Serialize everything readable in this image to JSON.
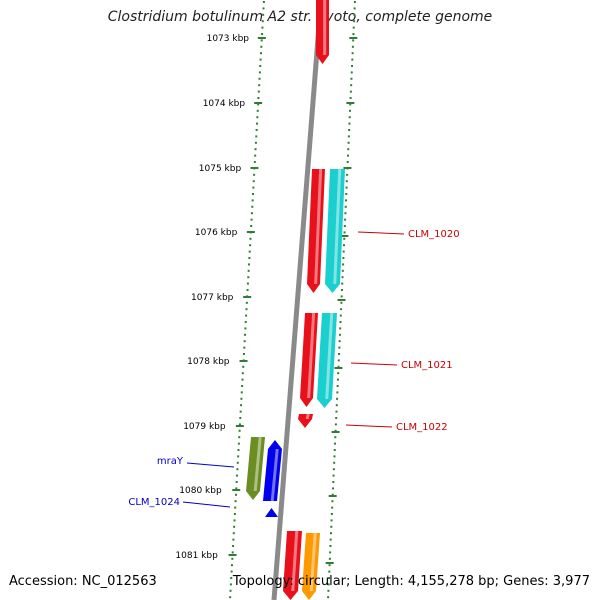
{
  "title": "Clostridium botulinum A2 str. Kyoto, complete genome",
  "accession": "Accession: NC_012563",
  "summary": "Topology: circular; Length: 4,155,278 bp; Genes: 3,977",
  "colors": {
    "backbone": "#8a8a8a",
    "tick": "#2e7d32",
    "forward_label": "#cc0000",
    "reverse_label": "#0000cc",
    "red": "#e8101a",
    "cyan": "#1ccfcf",
    "green": "#6b8e23",
    "blue": "#0000ee",
    "orange": "#ff9900"
  },
  "scale": {
    "unit": "kbp",
    "ticks": [
      "1073 kbp",
      "1074 kbp",
      "1075 kbp",
      "1076 kbp",
      "1077 kbp",
      "1078 kbp",
      "1079 kbp",
      "1080 kbp",
      "1081 kbp"
    ]
  },
  "gene_labels": [
    {
      "text": "CLM_1020",
      "strand": "forward"
    },
    {
      "text": "CLM_1021",
      "strand": "forward"
    },
    {
      "text": "CLM_1022",
      "strand": "forward"
    },
    {
      "text": "mraY",
      "strand": "reverse"
    },
    {
      "text": "CLM_1024",
      "strand": "reverse"
    }
  ]
}
